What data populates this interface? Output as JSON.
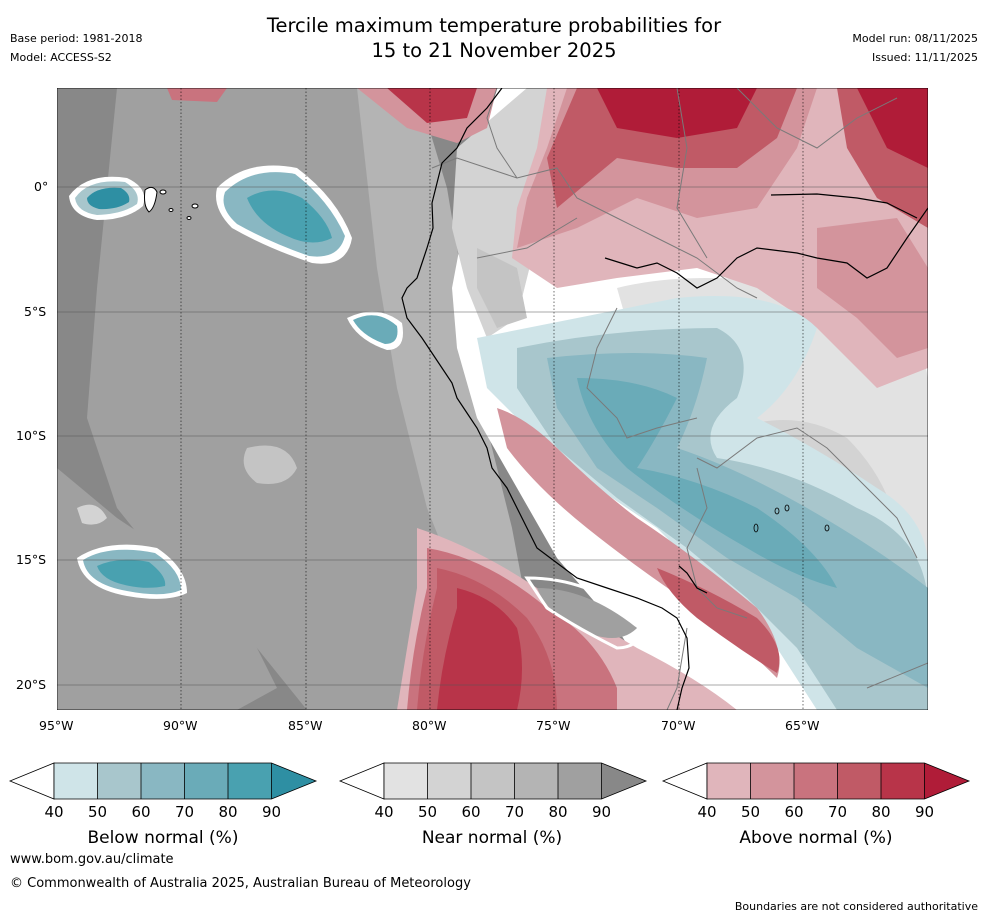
{
  "header": {
    "title_line1": "Tercile maximum temperature probabilities for",
    "title_line2": "15 to 21 November 2025",
    "base_period": "Base period: 1981-2018",
    "model": "Model: ACCESS-S2",
    "model_run": "Model run: 08/11/2025",
    "issued": "Issued: 11/11/2025"
  },
  "map": {
    "lat_labels": [
      "0°",
      "5°S",
      "10°S",
      "15°S",
      "20°S"
    ],
    "lon_labels": [
      "95°W",
      "90°W",
      "85°W",
      "80°W",
      "75°W",
      "70°W",
      "65°W"
    ]
  },
  "colorbars": [
    {
      "label": "Below normal (%)",
      "ticks": [
        "40",
        "50",
        "60",
        "70",
        "80",
        "90"
      ],
      "colors": [
        "#cfe4e8",
        "#a8c6cc",
        "#89b7c2",
        "#6aabb8",
        "#49a1b0",
        "#2e8fa3"
      ]
    },
    {
      "label": "Near normal (%)",
      "ticks": [
        "40",
        "50",
        "60",
        "70",
        "80",
        "90"
      ],
      "colors": [
        "#e2e2e2",
        "#d3d3d3",
        "#c4c4c4",
        "#b4b4b4",
        "#a0a0a0",
        "#888888"
      ]
    },
    {
      "label": "Above normal (%)",
      "ticks": [
        "40",
        "50",
        "60",
        "70",
        "80",
        "90"
      ],
      "colors": [
        "#e0b5bb",
        "#d3949c",
        "#c9737e",
        "#c05a66",
        "#b83449",
        "#b01c38"
      ]
    }
  ],
  "footer": {
    "website": "www.bom.gov.au/climate",
    "copyright": "© Commonwealth of Australia 2025, Australian Bureau of Meteorology",
    "disclaimer": "Boundaries are not considered authoritative"
  }
}
